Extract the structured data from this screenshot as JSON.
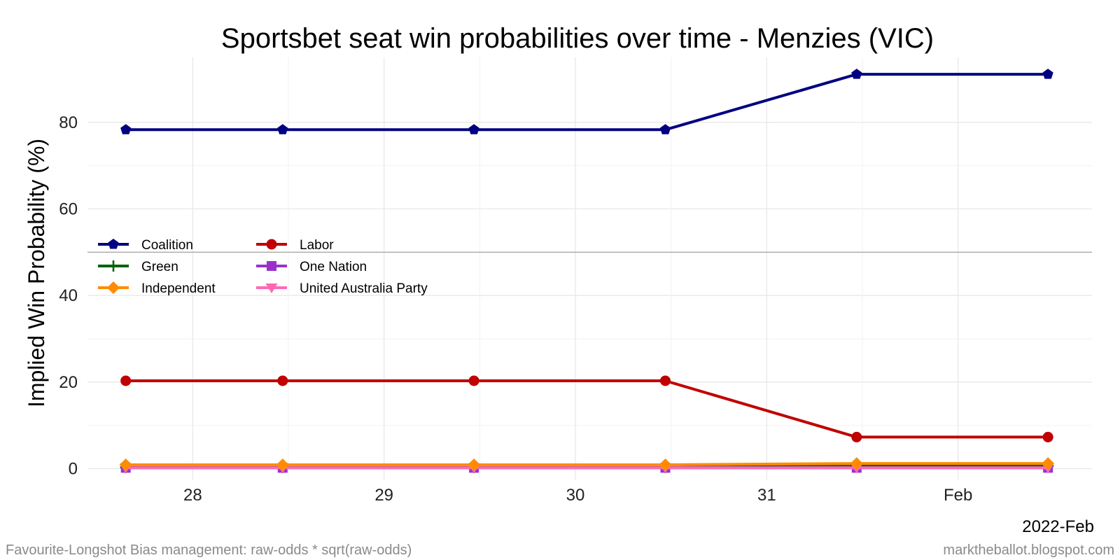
{
  "chart_data": {
    "type": "line",
    "title": "Sportsbet seat win probabilities over time - Menzies (VIC)",
    "xlabel": "",
    "ylabel": "Implied Win Probability (%)",
    "x_axis_sublabel": "2022-Feb",
    "x_ticks": [
      {
        "label": "28",
        "value": 28
      },
      {
        "label": "29",
        "value": 29
      },
      {
        "label": "30",
        "value": 30
      },
      {
        "label": "31",
        "value": 31
      },
      {
        "label": "Feb",
        "value": 32
      }
    ],
    "y_ticks": [
      0,
      20,
      40,
      60,
      80
    ],
    "xlim": [
      27.45,
      32.7
    ],
    "ylim": [
      -2.5,
      95
    ],
    "reference_line_y": 50,
    "grid": true,
    "legend_position": "left",
    "x": [
      27.65,
      28.47,
      29.47,
      30.47,
      31.47,
      32.47
    ],
    "series": [
      {
        "name": "Coalition",
        "color": "#000080",
        "marker": "pentagon",
        "values": [
          78.3,
          78.3,
          78.3,
          78.3,
          91.1,
          91.1
        ]
      },
      {
        "name": "Labor",
        "color": "#c00000",
        "marker": "circle",
        "values": [
          20.3,
          20.3,
          20.3,
          20.3,
          7.3,
          7.3
        ]
      },
      {
        "name": "Green",
        "color": "#006400",
        "marker": "plus",
        "values": [
          0.3,
          0.3,
          0.3,
          0.3,
          0.6,
          0.6
        ]
      },
      {
        "name": "One Nation",
        "color": "#9932cc",
        "marker": "square",
        "values": [
          0.2,
          0.2,
          0.2,
          0.2,
          0.2,
          0.2
        ]
      },
      {
        "name": "Independent",
        "color": "#ff8c00",
        "marker": "diamond",
        "values": [
          0.9,
          0.9,
          0.9,
          0.9,
          1.2,
          1.2
        ]
      },
      {
        "name": "United Australia Party",
        "color": "#ff69b4",
        "marker": "triangle-down",
        "values": [
          0.2,
          0.2,
          0.2,
          0.2,
          0.2,
          0.2
        ]
      }
    ]
  },
  "captions": {
    "left": "Favourite-Longshot Bias management: raw-odds * sqrt(raw-odds)",
    "right": "marktheballot.blogspot.com"
  }
}
